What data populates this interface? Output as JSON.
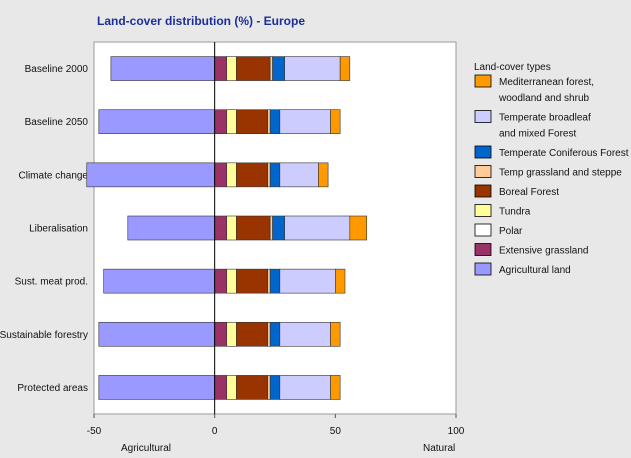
{
  "chart_data": {
    "type": "bar",
    "orientation": "horizontal",
    "stacked": true,
    "title": "Land-cover distribution (%) - Europe",
    "x_left_label": "Agricultural",
    "x_right_label": "Natural",
    "xlim": [
      -50,
      100
    ],
    "xticks": [
      -50,
      0,
      50,
      100
    ],
    "grid": false,
    "legend_position": "right",
    "legend_title": "Land-cover types",
    "categories": [
      "Baseline 2000",
      "Baseline 2050",
      "Climate change",
      "Liberalisation",
      "Sust. meat prod.",
      "Sustainable forestry",
      "Protected areas"
    ],
    "negative_series": [
      {
        "name": "Agricultural land",
        "color": "#9999ff",
        "values": [
          -43,
          -48,
          -53,
          -36,
          -46,
          -48,
          -48
        ]
      }
    ],
    "positive_series": [
      {
        "name": "Extensive grassland",
        "color": "#993366",
        "values": [
          5,
          5,
          5,
          5,
          5,
          5,
          5
        ]
      },
      {
        "name": "Polar",
        "color": "#ffffff",
        "values": [
          0,
          0,
          0,
          0,
          0,
          0,
          0
        ]
      },
      {
        "name": "Tundra",
        "color": "#ffff99",
        "values": [
          4,
          4,
          4,
          4,
          4,
          4,
          4
        ]
      },
      {
        "name": "Boreal Forest",
        "color": "#993300",
        "values": [
          14,
          13,
          13,
          14,
          13,
          13,
          13
        ]
      },
      {
        "name": "Temp grassland and steppe",
        "color": "#ffcc99",
        "values": [
          1,
          1,
          1,
          1,
          1,
          1,
          1
        ]
      },
      {
        "name": "Temperate Coniferous Forest",
        "color": "#0066cc",
        "values": [
          5,
          4,
          4,
          5,
          4,
          4,
          4
        ]
      },
      {
        "name": "Temperate broadleaf and mixed Forest",
        "color": "#ccccff",
        "values": [
          23,
          21,
          16,
          27,
          23,
          21,
          21
        ]
      },
      {
        "name": "Mediterranean forest, woodland and shrub",
        "color": "#ff9900",
        "values": [
          4,
          4,
          4,
          7,
          4,
          4,
          4
        ]
      }
    ],
    "legend": [
      {
        "lines": [
          "Mediterranean forest,",
          "woodland and shrub"
        ],
        "color": "#ff9900"
      },
      {
        "lines": [
          "Temperate broadleaf",
          "and mixed Forest"
        ],
        "color": "#ccccff"
      },
      {
        "lines": [
          "Temperate Coniferous Forest"
        ],
        "color": "#0066cc"
      },
      {
        "lines": [
          "Temp grassland and steppe"
        ],
        "color": "#ffcc99"
      },
      {
        "lines": [
          "Boreal Forest"
        ],
        "color": "#993300"
      },
      {
        "lines": [
          "Tundra"
        ],
        "color": "#ffff99"
      },
      {
        "lines": [
          "Polar"
        ],
        "color": "#ffffff"
      },
      {
        "lines": [
          "Extensive grassland"
        ],
        "color": "#993366"
      },
      {
        "lines": [
          "Agricultural land"
        ],
        "color": "#9999ff"
      }
    ]
  }
}
